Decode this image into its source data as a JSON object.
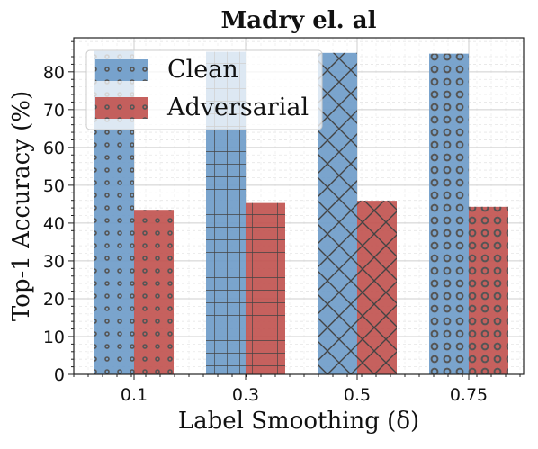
{
  "chart_data": {
    "type": "bar",
    "title": "Madry el. al",
    "xlabel": "Label Smoothing (δ)",
    "ylabel": "Top-1 Accuracy (%)",
    "categories": [
      "0.1",
      "0.3",
      "0.5",
      "0.75"
    ],
    "series": [
      {
        "name": "Clean",
        "values": [
          85.5,
          85.3,
          85.0,
          84.8
        ],
        "color": "#6b9ac8"
      },
      {
        "name": "Adversarial",
        "values": [
          43.5,
          45.3,
          45.9,
          44.3
        ],
        "color": "#c0504d"
      }
    ],
    "ylim": [
      0,
      89
    ],
    "yticks": [
      0,
      10,
      20,
      30,
      40,
      50,
      60,
      70,
      80
    ],
    "grid": true,
    "legend": "top-left",
    "hatches": [
      "dots",
      "grid",
      "cross",
      "rings"
    ]
  }
}
